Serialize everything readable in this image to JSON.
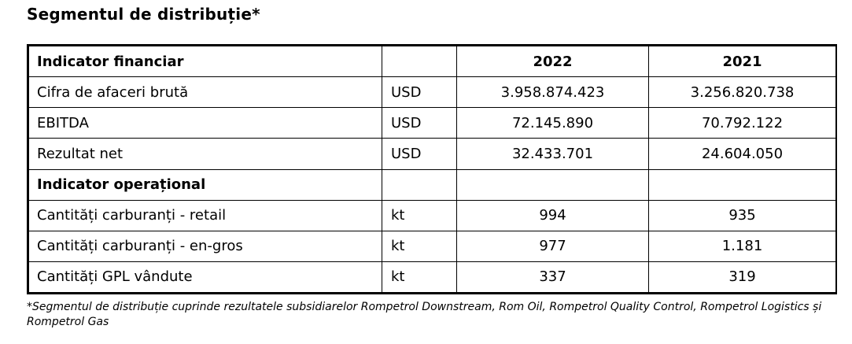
{
  "title": "Segmentul de distribuție*",
  "table": {
    "header": {
      "label": "Indicator financiar",
      "unit": "",
      "year1": "2022",
      "year2": "2021"
    },
    "financial_rows": [
      {
        "label": "Cifra de afaceri brută",
        "unit": "USD",
        "year1": "3.958.874.423",
        "year2": "3.256.820.738"
      },
      {
        "label": "EBITDA",
        "unit": "USD",
        "year1": "72.145.890",
        "year2": "70.792.122"
      },
      {
        "label": "Rezultat net",
        "unit": "USD",
        "year1": "32.433.701",
        "year2": "24.604.050"
      }
    ],
    "operational_header": {
      "label": "Indicator operațional"
    },
    "operational_rows": [
      {
        "label": "Cantități carburanți - retail",
        "unit": "kt",
        "year1": "994",
        "year2": "935"
      },
      {
        "label": "Cantități carburanți - en-gros",
        "unit": "kt",
        "year1": "977",
        "year2": "1.181"
      },
      {
        "label": "Cantități GPL vândute",
        "unit": "kt",
        "year1": "337",
        "year2": "319"
      }
    ]
  },
  "footnote": "*Segmentul de distribuție cuprinde rezultatele subsidiarelor Rompetrol Downstream, Rom Oil, Rompetrol Quality Control, Rompetrol Logistics și Rompetrol Gas"
}
